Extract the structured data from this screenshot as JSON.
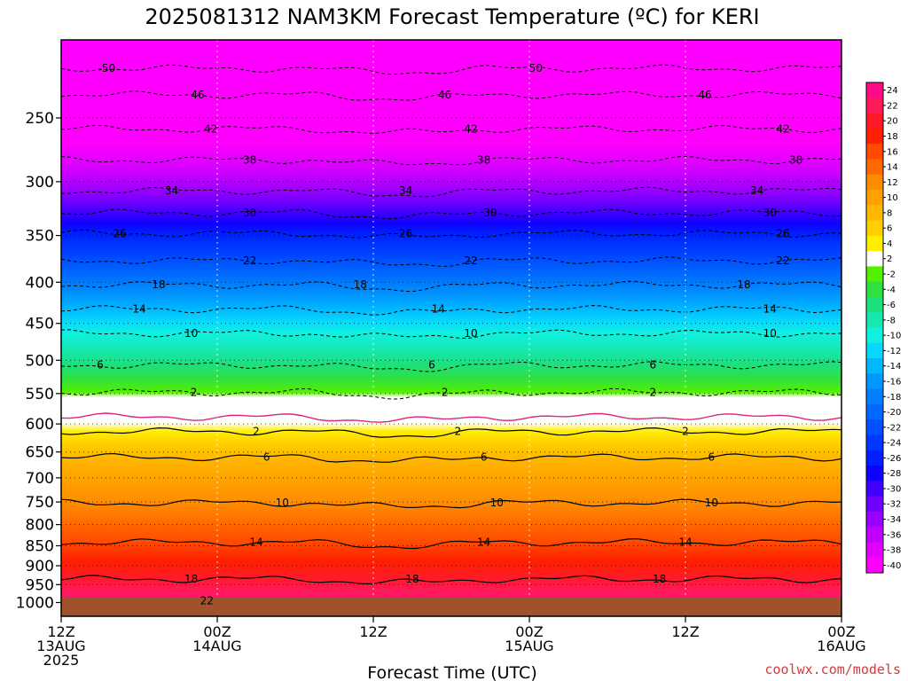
{
  "title": "2025081312 NAM3KM Forecast Temperature (ºC) for KERI",
  "credit": "coolwx.com/models",
  "xlabel": "Forecast Time (UTC)",
  "chart_data": {
    "type": "heatmap",
    "title": "2025081312 NAM3KM Forecast Temperature (ºC) for KERI",
    "xlabel": "Forecast Time (UTC)",
    "ylabel": "",
    "x_ticks": [
      {
        "hour": 0,
        "lines": [
          "12Z",
          "13AUG",
          "2025"
        ]
      },
      {
        "hour": 12,
        "lines": [
          "00Z",
          "14AUG"
        ]
      },
      {
        "hour": 24,
        "lines": [
          "12Z"
        ]
      },
      {
        "hour": 36,
        "lines": [
          "00Z",
          "15AUG"
        ]
      },
      {
        "hour": 48,
        "lines": [
          "12Z"
        ]
      },
      {
        "hour": 60,
        "lines": [
          "00Z",
          "16AUG"
        ]
      }
    ],
    "xlim": [
      0,
      60
    ],
    "y_ticks": [
      "250",
      "300",
      "350",
      "400",
      "450",
      "500",
      "550",
      "600",
      "650",
      "700",
      "750",
      "800",
      "850",
      "900",
      "950",
      "1000"
    ],
    "ylim": [
      200,
      1040
    ],
    "y_scale": "log-pressure",
    "grid": true,
    "colorbar": {
      "labels": [
        "24",
        "22",
        "20",
        "18",
        "16",
        "14",
        "12",
        "10",
        "8",
        "6",
        "4",
        "2",
        "-2",
        "-4",
        "-6",
        "-8",
        "-10",
        "-12",
        "-14",
        "-16",
        "-18",
        "-20",
        "-22",
        "-24",
        "-26",
        "-28",
        "-30",
        "-32",
        "-34",
        "-36",
        "-38",
        "-40"
      ],
      "colors": [
        "#ff0a8a",
        "#ff1a5a",
        "#ff1a2a",
        "#ff2000",
        "#ff4a00",
        "#ff6a00",
        "#ff8c00",
        "#ffa200",
        "#ffb800",
        "#ffcf00",
        "#ffee00",
        "#ffffff",
        "#55f000",
        "#2fe040",
        "#1de07a",
        "#16e8b0",
        "#10f0e0",
        "#08d8ff",
        "#00b8ff",
        "#0098ff",
        "#0080ff",
        "#0068ff",
        "#0050ff",
        "#0038ff",
        "#0020ff",
        "#1000ff",
        "#4000ff",
        "#6e00ff",
        "#9800ff",
        "#c000ff",
        "#e400ff",
        "#ff00ff"
      ]
    },
    "dashed_contours": [
      {
        "temp": -50,
        "pressure": 217,
        "labels": [
          {
            "hour": 3.5,
            "text": "-50"
          },
          {
            "hour": 36.5,
            "text": "50"
          }
        ]
      },
      {
        "temp": -46,
        "pressure": 234,
        "labels": [
          {
            "hour": 10.5,
            "text": "46"
          },
          {
            "hour": 29.5,
            "text": "46"
          },
          {
            "hour": 49.5,
            "text": "46"
          }
        ]
      },
      {
        "temp": -42,
        "pressure": 258,
        "labels": [
          {
            "hour": 11.5,
            "text": "42"
          },
          {
            "hour": 31.5,
            "text": "42"
          },
          {
            "hour": 55.5,
            "text": "42"
          }
        ]
      },
      {
        "temp": -38,
        "pressure": 282,
        "labels": [
          {
            "hour": 14.5,
            "text": "38"
          },
          {
            "hour": 32.5,
            "text": "38"
          },
          {
            "hour": 56.5,
            "text": "38"
          }
        ]
      },
      {
        "temp": -34,
        "pressure": 308,
        "labels": [
          {
            "hour": 8.5,
            "text": "34"
          },
          {
            "hour": 26.5,
            "text": "34"
          },
          {
            "hour": 53.5,
            "text": "34"
          }
        ]
      },
      {
        "temp": -30,
        "pressure": 328,
        "labels": [
          {
            "hour": 14.5,
            "text": "30"
          },
          {
            "hour": 33.0,
            "text": "30"
          },
          {
            "hour": 54.5,
            "text": "30"
          }
        ]
      },
      {
        "temp": -26,
        "pressure": 348,
        "labels": [
          {
            "hour": 4.5,
            "text": "26"
          },
          {
            "hour": 26.5,
            "text": "26"
          },
          {
            "hour": 55.5,
            "text": "26"
          }
        ]
      },
      {
        "temp": -22,
        "pressure": 376,
        "labels": [
          {
            "hour": 14.5,
            "text": "22"
          },
          {
            "hour": 31.5,
            "text": "22"
          },
          {
            "hour": 55.5,
            "text": "22"
          }
        ]
      },
      {
        "temp": -18,
        "pressure": 403,
        "labels": [
          {
            "hour": 7.5,
            "text": "18"
          },
          {
            "hour": 23.0,
            "text": "18"
          },
          {
            "hour": 52.5,
            "text": "18"
          }
        ]
      },
      {
        "temp": -14,
        "pressure": 432,
        "labels": [
          {
            "hour": 6.0,
            "text": "14"
          },
          {
            "hour": 29.0,
            "text": "14"
          },
          {
            "hour": 54.5,
            "text": "14"
          }
        ]
      },
      {
        "temp": -10,
        "pressure": 463,
        "labels": [
          {
            "hour": 10.0,
            "text": "10"
          },
          {
            "hour": 31.5,
            "text": "10"
          },
          {
            "hour": 54.5,
            "text": "10"
          }
        ]
      },
      {
        "temp": -6,
        "pressure": 507,
        "labels": [
          {
            "hour": 3.0,
            "text": "6"
          },
          {
            "hour": 28.5,
            "text": "6"
          },
          {
            "hour": 45.5,
            "text": "6"
          }
        ]
      },
      {
        "temp": -2,
        "pressure": 548,
        "labels": [
          {
            "hour": 10.2,
            "text": "2"
          },
          {
            "hour": 29.5,
            "text": "2"
          },
          {
            "hour": 45.5,
            "text": "2"
          }
        ]
      }
    ],
    "solid_contours": [
      {
        "temp": 2,
        "pressure": 613,
        "labels": [
          {
            "hour": 15.0,
            "text": "2"
          },
          {
            "hour": 30.5,
            "text": "2"
          },
          {
            "hour": 48.0,
            "text": "2"
          }
        ]
      },
      {
        "temp": 6,
        "pressure": 660,
        "labels": [
          {
            "hour": 15.8,
            "text": "6"
          },
          {
            "hour": 32.5,
            "text": "6"
          },
          {
            "hour": 50.0,
            "text": "6"
          }
        ]
      },
      {
        "temp": 10,
        "pressure": 752,
        "labels": [
          {
            "hour": 17.0,
            "text": "10"
          },
          {
            "hour": 33.5,
            "text": "10"
          },
          {
            "hour": 50.0,
            "text": "10"
          }
        ]
      },
      {
        "temp": 14,
        "pressure": 842,
        "labels": [
          {
            "hour": 15.0,
            "text": "14"
          },
          {
            "hour": 32.5,
            "text": "14"
          },
          {
            "hour": 48.0,
            "text": "14"
          }
        ]
      },
      {
        "temp": 18,
        "pressure": 935,
        "labels": [
          {
            "hour": 10.0,
            "text": "18"
          },
          {
            "hour": 27.0,
            "text": "18"
          },
          {
            "hour": 46.0,
            "text": "18"
          }
        ]
      },
      {
        "temp": 22,
        "pressure": 995,
        "labels": [
          {
            "hour": 11.2,
            "text": "22"
          }
        ]
      }
    ],
    "freezing_level_pressure": 588,
    "surface_pressure": 985
  }
}
